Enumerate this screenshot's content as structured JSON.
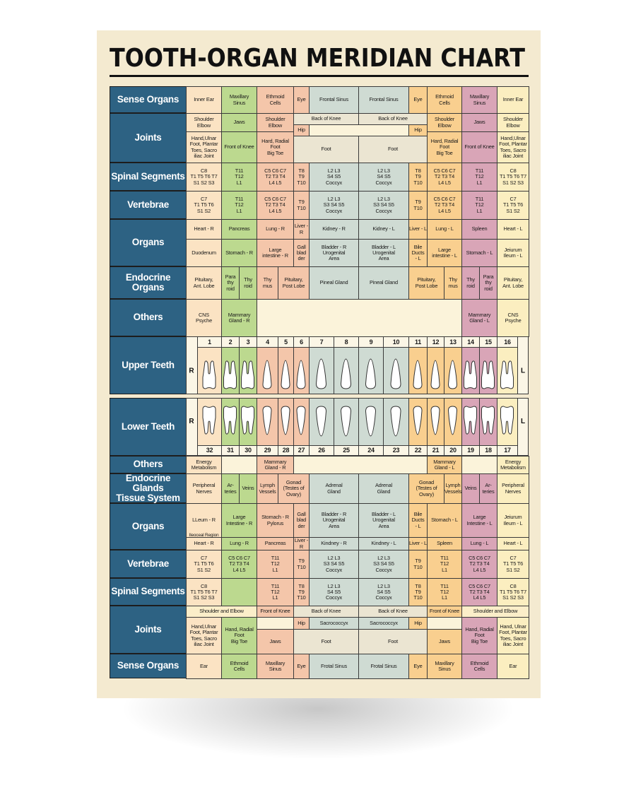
{
  "title": "TOOTH-ORGAN MERIDIAN CHART",
  "sections": [
    {
      "label": "Sense Organs",
      "cells": [
        "Inner Ear",
        "Maxillary\nSinus",
        "Ethmoid\nCells",
        "Eye",
        "Frontal Sinus",
        "Frontal Sinus",
        "Eye",
        "Ethmoid\nCells",
        "Maxillary\nSinus",
        "Inner Ear"
      ]
    },
    {
      "label": "Joints",
      "cells": [
        "Shoulder\nElbow",
        "Jaws",
        "Shoulder\nElbow",
        "Back of Knee",
        "Back of Knee",
        "Shoulder\nElbow",
        "Jaws",
        "Shoulder\nElbow",
        "Hip",
        "Hip",
        "Hand,Ulnar\nFoot, Plantar\nToes, Sacro\niliac Joint",
        "Front of Knee",
        "Hard, Radial\nFoot\nBig Toe",
        "Foot",
        "Foot",
        "Hard, Radial\nFoot\nBig Toe",
        "Front of Knee",
        "Hand,Ulnar\nFoot, Plantar\nToes, Sacro\niliac Joint"
      ]
    },
    {
      "label": "Spinal Segments",
      "cells": [
        "C8\nT1 T5 T6 T7\nS1 S2 S3",
        "T11\nT12\nL1",
        "C5 C6 C7\nT2 T3 T4\nL4 L5",
        "T8\nT9\nT10",
        "L2 L3\nS4 S5\nCoccyx",
        "L2 L3\nS4 S5\nCoccyx",
        "T8\nT9\nT10",
        "C5 C6 C7\nT2 T3 T4\nL4 L5",
        "T11\nT12\nL1",
        "C8\nT1 T5 T6 T7\nS1 S2 S3"
      ]
    },
    {
      "label": "Vertebrae",
      "cells": [
        "C7\nT1 T5 T6\nS1 S2",
        "T11\nT12\nL1",
        "C5 C6 C7\nT2 T3 T4\nL4 L5",
        "T9\nT10",
        "L2 L3\nS3 S4 S5\nCoccyx",
        "L2 L3\nS3 S4 S5\nCoccyx",
        "T9\nT10",
        "C5 C6 C7\nT2 T3 T4\nL4 L5",
        "T11\nT12\nL1",
        "C7\nT1 T5 T6\nS1 S2"
      ]
    },
    {
      "label": "Organs",
      "cells": [
        "Heart - R",
        "Pancreas",
        "Lung - R",
        "Liver - R",
        "Kidney - R",
        "Kidney - L",
        "Liver - L",
        "Lung - L",
        "Spleen",
        "Heart - L",
        "Duodenum",
        "Stomach - R",
        "Large\nintestine - R",
        "Gall\nblad\nder",
        "Bladder - R\nUrogenital\nArea",
        "Bladder - L\nUrogenital\nArea",
        "Bile\nDucts\n- L",
        "Large\nintestine - L",
        "Stomach - L",
        "Jeiurum\nIleum - L"
      ]
    },
    {
      "label": "Endocrine Organs",
      "cells": [
        "Pituitary,\nAnt. Lobe",
        "Para\nthy\nroid",
        "Thy\nroid",
        "Thy\nmus",
        "Pituitary,\nPost Lobe",
        "Pineal Gland",
        "Pineal Gland",
        "Pituitary,\nPost Lobe",
        "Thy\nmus",
        "Thy\nroid",
        "Para\nthy\nroid",
        "Pituitary,\nAnt. Lobe"
      ]
    },
    {
      "label": "Others",
      "cells": [
        "CNS\nPsyche",
        "Mammary\nGland - R",
        null,
        "Mammary\nGland - L",
        "CNS\nPsyche"
      ]
    },
    {
      "label": "Upper Teeth",
      "sides": [
        "R",
        "L"
      ],
      "numbers": [
        "1",
        "2",
        "3",
        "4",
        "5",
        "6",
        "7",
        "8",
        "9",
        "10",
        "11",
        "12",
        "13",
        "14",
        "15",
        "16"
      ]
    },
    {
      "label": "Lower Teeth",
      "sides": [
        "R",
        "L"
      ],
      "numbers": [
        "32",
        "31",
        "30",
        "29",
        "28",
        "27",
        "26",
        "25",
        "24",
        "23",
        "22",
        "21",
        "20",
        "19",
        "18",
        "17"
      ]
    },
    {
      "label": "Others",
      "cells": [
        "Energy\nMetabolism",
        null,
        "Mammary\nGland - R",
        null,
        "Mammary\nGland - L",
        null,
        "Energy\nMetabolism"
      ]
    },
    {
      "label": "Endocrine Glands\nTissue System",
      "cells": [
        "Peripheral\nNerves",
        "Ar-\nteries",
        "Veins",
        "Lymph\nVessels",
        "Gonad\n(Testes of\nOvary)",
        "Adrenal\nGland",
        "Adrenal\nGland",
        "Gonad\n(Testes of\nOvary)",
        "Lymph\nVessels",
        "Veins",
        "Ar-\nteries",
        "Peripheral\nNerves"
      ]
    },
    {
      "label": "Organs",
      "cells": [
        "LLeum - R",
        "Large\nIntestine - R",
        "Stomach - R\nPylorus",
        "Gall\nblad\nder",
        "Bladder - R\nUrogenital\nArea",
        "Bladder - L\nUrogenital\nArea",
        "Bile\nDucts\n- L",
        "Stomach - L",
        "Large\nIntestine - L",
        "Jeiurum\nIleum - L",
        "Heart - R",
        "Lung - R",
        "Pancreas",
        "Liver - R",
        "Kindney - R",
        "Kindney - L",
        "Liver - L",
        "Spleen",
        "Lung - L",
        "Heart - L",
        "Ileoceal Region"
      ]
    },
    {
      "label": "Vertebrae",
      "cells": [
        "C7\nT1 T5 T6\nS1 S2",
        "C5 C6 C7\nT2 T3 T4\nL4 L5",
        "T11\nT12\nL1",
        "T9\nT10",
        "L2 L3\nS3 S4 S5\nCoccyx",
        "L2 L3\nS3 S4 S5\nCoccyx",
        "T9\nT10",
        "T11\nT12\nL1",
        "C5 C6 C7\nT2 T3 T4\nL4 L5",
        "C7\nT1 T5 T6\nS1 S2"
      ]
    },
    {
      "label": "Spinal Segments",
      "cells": [
        "C8\nT1 T5 T6 T7\nS1 S2 S3",
        null,
        "T11\nT12\nL1",
        "T8\nT9\nT10",
        "L2 L3\nS4 S5\nCoccyx",
        "L2 L3\nS4 S5\nCoccyx",
        "T8\nT9\nT10",
        "T11\nT12\nL1",
        "C5 C6 C7\nT2 T3 T4\nL4 L5",
        "C8\nT1 T5 T6 T7\nS1 S2 S3"
      ]
    },
    {
      "label": "Joints",
      "cells": [
        "Shoulder and Elbow",
        "Front of Knee",
        "Back of Knee",
        "Back of Knee",
        "Front of Knee",
        "Shoulder and Elbow",
        "Hip",
        "Sacrococcyx",
        "Sacrococcyx",
        "Hip",
        "Hand,Ulnar\nFoot, Plantar\nToes, Sacro\niliac Joint",
        "Hand, Radial\nFoot\nBig Toe",
        "Jaws",
        "Foot",
        "Foot",
        "Jaws",
        "Hand, Radial\nFoot\nBig Toe",
        "Hand, Ulnar\nFoot, Plantar\nToes, Sacro\niliac Joint"
      ]
    },
    {
      "label": "Sense Organs",
      "cells": [
        "Ear",
        "Ethmoid\nCells",
        "Maxillary\nSinus",
        "Eye",
        "Frotal Sinus",
        "Frotal Sinus",
        "Eye",
        "Maxillary\nSinus",
        "Ethmoid\nCells",
        "Ear"
      ]
    }
  ]
}
